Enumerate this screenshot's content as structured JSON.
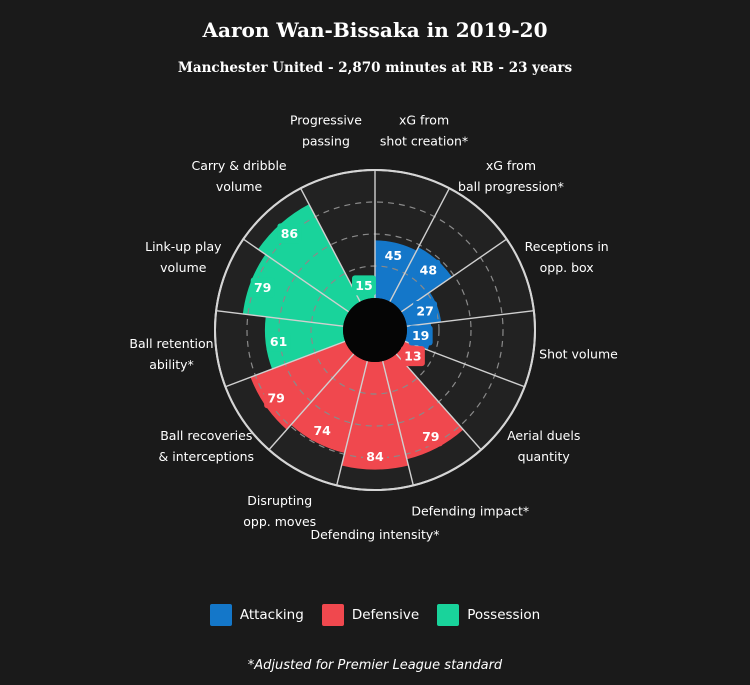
{
  "header": {
    "title": "Aaron Wan-Bissaka in 2019-20",
    "subtitle": "Manchester United - 2,870 minutes at RB - 23 years"
  },
  "legend": [
    {
      "name": "Attacking",
      "color": "#1477c9"
    },
    {
      "name": "Defensive",
      "color": "#f0484e"
    },
    {
      "name": "Possession",
      "color": "#19d39b"
    }
  ],
  "footnote": "*Adjusted for Premier League standard",
  "chart_data": {
    "type": "polar-bar",
    "ylim": [
      0,
      100
    ],
    "grid": true,
    "categories": [
      {
        "label": [
          "xG from",
          "shot creation*"
        ],
        "value": 45,
        "group": "Attacking"
      },
      {
        "label": [
          "xG from",
          "ball progression*"
        ],
        "value": 48,
        "group": "Attacking"
      },
      {
        "label": [
          "Receptions in",
          "opp. box"
        ],
        "value": 27,
        "group": "Attacking"
      },
      {
        "label": [
          "Shot volume"
        ],
        "value": 19,
        "group": "Attacking"
      },
      {
        "label": [
          "Aerial duels",
          "quantity"
        ],
        "value": 13,
        "group": "Defensive"
      },
      {
        "label": [
          "Defending impact*"
        ],
        "value": 79,
        "group": "Defensive"
      },
      {
        "label": [
          "Defending intensity*"
        ],
        "value": 84,
        "group": "Defensive"
      },
      {
        "label": [
          "Disrupting",
          "opp. moves"
        ],
        "value": 74,
        "group": "Defensive"
      },
      {
        "label": [
          "Ball recoveries",
          "& interceptions"
        ],
        "value": 79,
        "group": "Defensive"
      },
      {
        "label": [
          "Ball retention",
          "ability*"
        ],
        "value": 61,
        "group": "Possession"
      },
      {
        "label": [
          "Link-up play",
          "volume"
        ],
        "value": 79,
        "group": "Possession"
      },
      {
        "label": [
          "Carry & dribble",
          "volume"
        ],
        "value": 86,
        "group": "Possession"
      },
      {
        "label": [
          "Progressive",
          "passing"
        ],
        "value": 15,
        "group": "Possession"
      }
    ],
    "group_colors": {
      "Attacking": "#1477c9",
      "Defensive": "#f0484e",
      "Possession": "#19d39b"
    }
  }
}
